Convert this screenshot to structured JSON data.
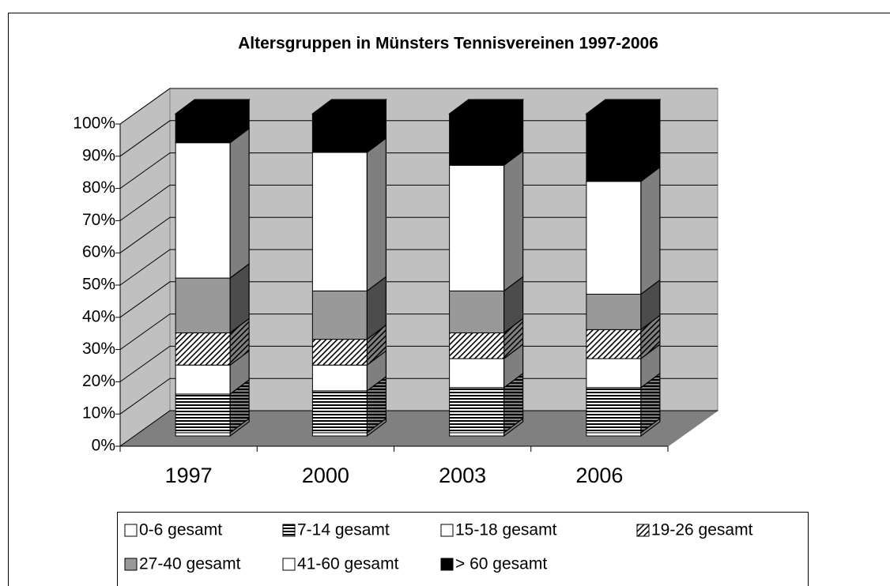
{
  "chart_data": {
    "type": "bar3d_stacked",
    "title": "Altersgruppen in Münsters Tennisvereinen 1997-2006",
    "categories": [
      "1997",
      "2000",
      "2003",
      "2006"
    ],
    "series": [
      {
        "name": "0-6 gesamt",
        "color": "#ffffff",
        "values": [
          1,
          1,
          1,
          1
        ]
      },
      {
        "name": "7-14 gesamt",
        "color": "#ffffff",
        "pattern": "horizontal",
        "values": [
          12,
          13,
          14,
          14
        ]
      },
      {
        "name": "15-18 gesamt",
        "color": "#ffffff",
        "values": [
          9,
          8,
          9,
          9
        ]
      },
      {
        "name": "19-26 gesamt",
        "color": "#ffffff",
        "pattern": "diagonal",
        "values": [
          10,
          8,
          8,
          9
        ]
      },
      {
        "name": "27-40 gesamt",
        "color": "#999999",
        "values": [
          17,
          15,
          13,
          11
        ]
      },
      {
        "name": "41-60 gesamt",
        "color": "#ffffff",
        "values": [
          42,
          43,
          39,
          35
        ]
      },
      {
        "name": "> 60 gesamt",
        "color": "#000000",
        "values": [
          9,
          12,
          16,
          21
        ]
      }
    ],
    "ylim": [
      0,
      100
    ],
    "yticks": [
      {
        "value": 0,
        "label": "0%"
      },
      {
        "value": 10,
        "label": "10%"
      },
      {
        "value": 20,
        "label": "20%"
      },
      {
        "value": 30,
        "label": "30%"
      },
      {
        "value": 40,
        "label": "40%"
      },
      {
        "value": 50,
        "label": "50%"
      },
      {
        "value": 60,
        "label": "60%"
      },
      {
        "value": 70,
        "label": "70%"
      },
      {
        "value": 80,
        "label": "80%"
      },
      {
        "value": 90,
        "label": "90%"
      },
      {
        "value": 100,
        "label": "100%"
      }
    ],
    "grid": true
  }
}
